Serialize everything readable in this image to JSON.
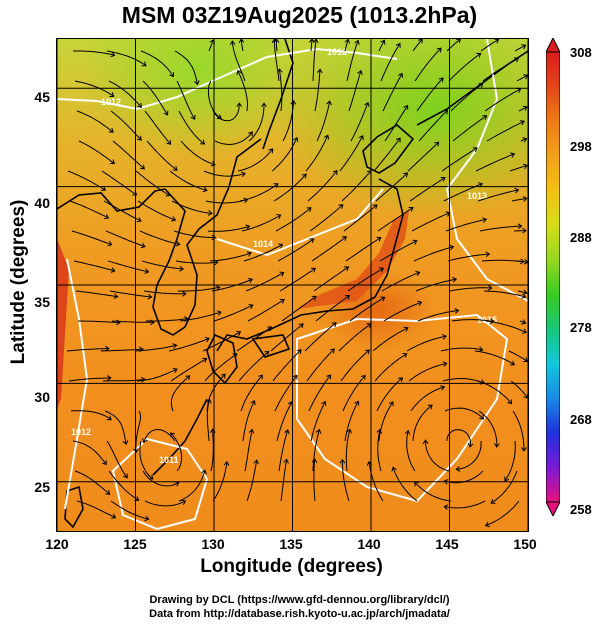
{
  "title": "MSM 03Z19Aug2025 (1013.2hPa)",
  "axes": {
    "xlabel": "Longitude (degrees)",
    "ylabel": "Latitude  (degrees)",
    "xticks": [
      "120",
      "125",
      "130",
      "135",
      "140",
      "145",
      "150"
    ],
    "yticks": [
      "45",
      "40",
      "35",
      "30",
      "25"
    ],
    "xlim": [
      120,
      150
    ],
    "ylim": [
      22.5,
      47.5
    ]
  },
  "colorbar": {
    "ticks": [
      "308",
      "298",
      "288",
      "278",
      "268",
      "258"
    ],
    "range": [
      258,
      308
    ],
    "colors": [
      "#e8107c",
      "#7a1ad8",
      "#1e32dc",
      "#1a8ae6",
      "#12c8dc",
      "#18c878",
      "#38cc20",
      "#98d820",
      "#d6dc1c",
      "#f4c016",
      "#f2a018",
      "#ef7c14",
      "#e4461a",
      "#d81e1e"
    ]
  },
  "contour_labels": [
    "1012",
    "1013",
    "1014",
    "1015",
    "1012",
    "1011",
    "1013"
  ],
  "credits": {
    "line1": "Drawing by DCL (https://www.gfd-dennou.org/library/dcl/)",
    "line2": "Data from http://database.rish.kyoto-u.ac.jp/arch/jmadata/"
  },
  "colors": {
    "land_outline": "#000000",
    "isobar": "#ffffff",
    "grid": "#000000"
  }
}
